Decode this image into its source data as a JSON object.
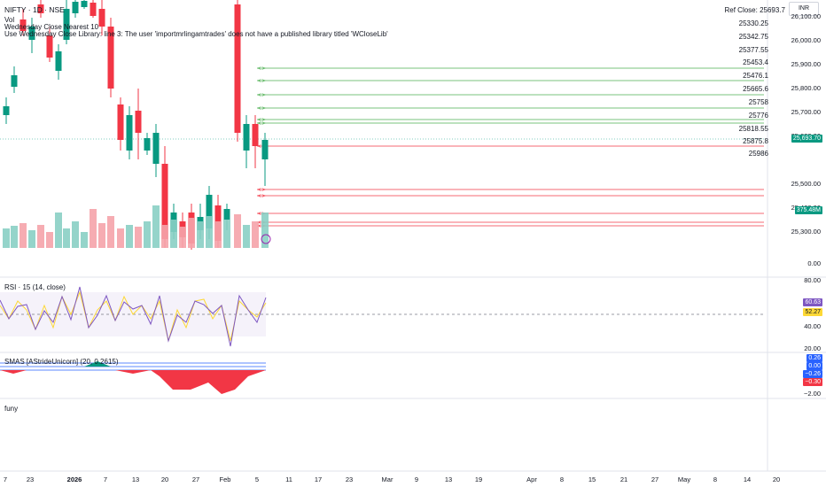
{
  "header": {
    "symbol_line": "NIFTY · 1D · NSE",
    "vol_label": "Vol",
    "indicator_line": "Wednesday Close Nearest 10",
    "error_line": "Use Wednesday Close Library: line 3: The user 'importmrlingamtrades' does not have a published library titled 'WCloseLib'"
  },
  "currency": "INR",
  "ref_close_label": "Ref Close: 25693.7",
  "ref_levels": [
    "25330.25",
    "25342.75",
    "25377.55",
    "25453.4",
    "25476.1",
    "25665.6",
    "25758",
    "25776",
    "25818.55",
    "25875.8",
    "25986"
  ],
  "price_axis": [
    "26,100.00",
    "26,000.00",
    "25,900.00",
    "25,800.00",
    "25,700.00",
    "25,600.00",
    "25,500.00",
    "25,400.00",
    "25,300.00"
  ],
  "price_badge": "25,693.70",
  "volume_badge": "375.48M",
  "volume_zero": "0.00",
  "rsi": {
    "title": "RSI · 15 (14, close)",
    "axis": [
      "80.00",
      "40.00",
      "20.00"
    ],
    "badge_rsi": "60.63",
    "badge_ma": "52.27"
  },
  "smas": {
    "title": "SMAS [AStrideUnicorn] (20, 0.2615)",
    "badges": [
      "0.26",
      "0.00",
      "−0.26",
      "−0.30"
    ],
    "axis_bottom": "−2.00"
  },
  "extra_pane_label": "funy",
  "time_axis": [
    "7",
    "23",
    "2026",
    "7",
    "13",
    "20",
    "27",
    "Feb",
    "5",
    "11",
    "17",
    "23",
    "Mar",
    "9",
    "13",
    "19",
    "Apr",
    "8",
    "15",
    "21",
    "27",
    "May",
    "8",
    "14",
    "20"
  ],
  "colors": {
    "up": "#089981",
    "down": "#f23645",
    "rsi_line": "#7e57c2",
    "rsi_ma": "#fdd835",
    "rsi_band": "#7e57c2",
    "smas_fill": "#f23645",
    "level_green": "#4caf50",
    "level_red": "#f23645"
  }
}
